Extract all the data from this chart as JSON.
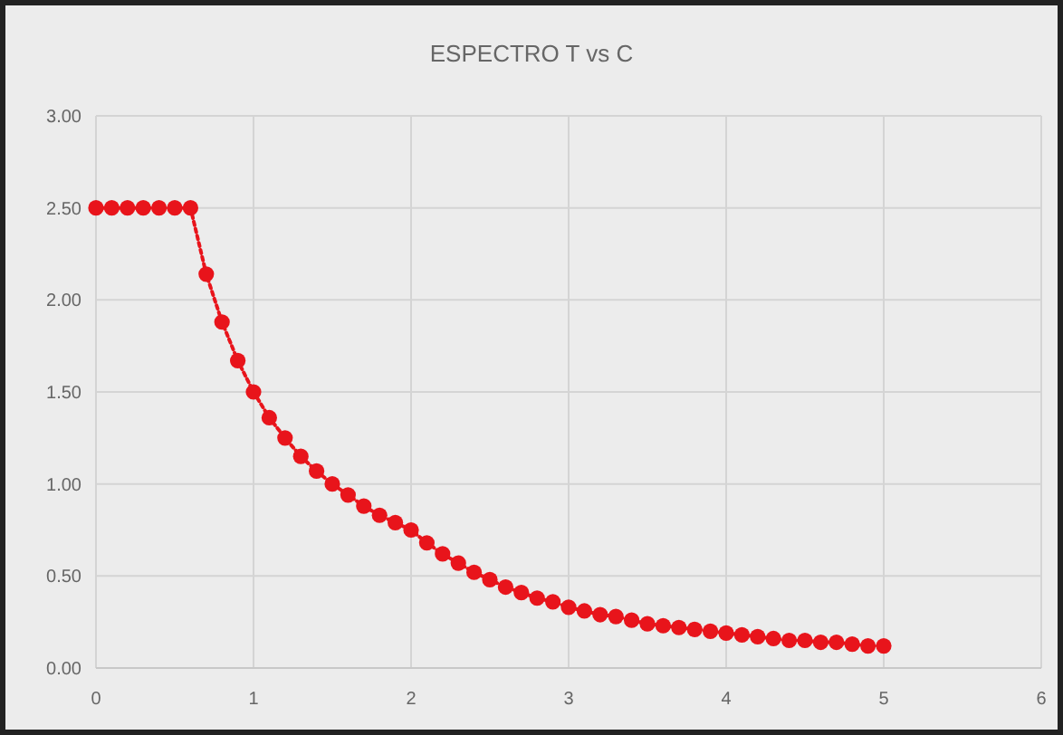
{
  "chart_data": {
    "type": "line",
    "title": "ESPECTRO T vs C",
    "x": [
      0,
      0.1,
      0.2,
      0.3,
      0.4,
      0.5,
      0.6,
      0.7,
      0.8,
      0.9,
      1.0,
      1.1,
      1.2,
      1.3,
      1.4,
      1.5,
      1.6,
      1.7,
      1.8,
      1.9,
      2.0,
      2.1,
      2.2,
      2.3,
      2.4,
      2.5,
      2.6,
      2.7,
      2.8,
      2.9,
      3.0,
      3.1,
      3.2,
      3.3,
      3.4,
      3.5,
      3.6,
      3.7,
      3.8,
      3.9,
      4.0,
      4.1,
      4.2,
      4.3,
      4.4,
      4.5,
      4.6,
      4.7,
      4.8,
      4.9,
      5.0
    ],
    "series": [
      {
        "color": "#e8141b",
        "values": [
          2.5,
          2.5,
          2.5,
          2.5,
          2.5,
          2.5,
          2.5,
          2.14,
          1.88,
          1.67,
          1.5,
          1.36,
          1.25,
          1.15,
          1.07,
          1.0,
          0.94,
          0.88,
          0.83,
          0.79,
          0.75,
          0.68,
          0.62,
          0.57,
          0.52,
          0.48,
          0.44,
          0.41,
          0.38,
          0.36,
          0.33,
          0.31,
          0.29,
          0.28,
          0.26,
          0.24,
          0.23,
          0.22,
          0.21,
          0.2,
          0.19,
          0.18,
          0.17,
          0.16,
          0.15,
          0.15,
          0.14,
          0.14,
          0.13,
          0.12,
          0.12
        ]
      }
    ],
    "xlim": [
      0,
      6
    ],
    "xticks": [
      0,
      1,
      2,
      3,
      4,
      5,
      6
    ],
    "ylim": [
      0,
      3
    ],
    "yticks": [
      {
        "value": 0,
        "label": "0.00"
      },
      {
        "value": 0.5,
        "label": "0.50"
      },
      {
        "value": 1,
        "label": "1.00"
      },
      {
        "value": 1.5,
        "label": "1.50"
      },
      {
        "value": 2,
        "label": "2.00"
      },
      {
        "value": 2.5,
        "label": "2.50"
      },
      {
        "value": 3,
        "label": "3.00"
      }
    ],
    "grid": true,
    "marker": "circle",
    "line_style": "dotted"
  }
}
